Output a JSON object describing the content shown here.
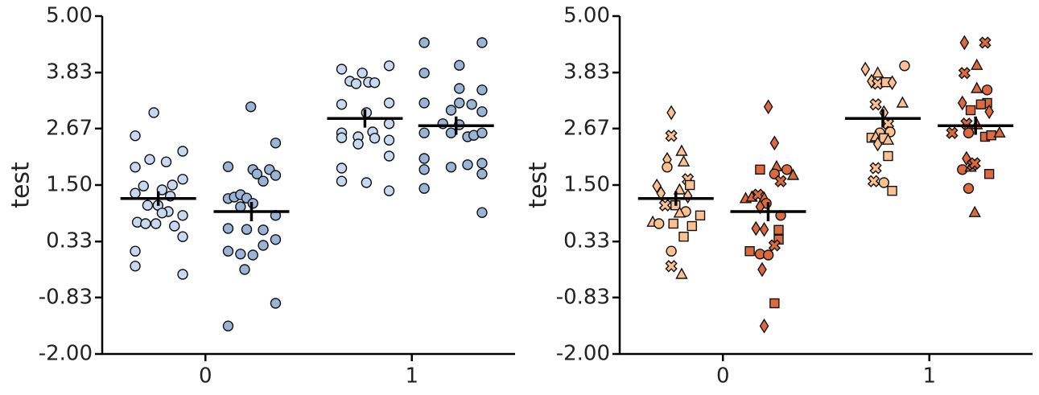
{
  "chart_data": [
    {
      "type": "strip",
      "ylabel": "test",
      "xlim": [
        -0.5,
        1.5
      ],
      "xticks": [
        0,
        1
      ],
      "ylim": [
        -2,
        5
      ],
      "yticks": [
        {
          "value": -2,
          "label": "-2.00"
        },
        {
          "value": -0.83,
          "label": "-0.83"
        },
        {
          "value": 0.33,
          "label": "0.33"
        },
        {
          "value": 1.5,
          "label": "1.50"
        },
        {
          "value": 2.67,
          "label": "2.67"
        },
        {
          "value": 3.83,
          "label": "3.83"
        },
        {
          "value": 5,
          "label": "5.00"
        }
      ],
      "series": [
        {
          "color": "#c6d9f1",
          "marker": "circle",
          "groups": [
            {
              "x": [
                -0.25,
                -0.34,
                -0.27,
                -0.19,
                -0.11,
                -0.34,
                -0.11,
                -0.3,
                -0.16,
                -0.34,
                -0.21,
                -0.17,
                -0.28,
                -0.23,
                -0.33,
                -0.29,
                -0.24,
                -0.18,
                -0.21,
                -0.11,
                -0.15,
                -0.11,
                -0.34,
                -0.34,
                -0.11
              ],
              "values": [
                3.0,
                2.52,
                2.03,
                1.98,
                2.2,
                1.87,
                1.62,
                1.48,
                1.5,
                1.33,
                1.4,
                1.27,
                1.08,
                1.08,
                0.73,
                0.7,
                0.7,
                0.95,
                0.92,
                0.87,
                0.65,
                0.43,
                0.13,
                -0.18,
                -0.35
              ],
              "mean": 1.22,
              "error": 0.15
            },
            {
              "x": [
                0.66,
                0.76,
                0.89,
                0.7,
                0.73,
                0.79,
                0.82,
                0.66,
                0.89,
                0.78,
                0.89,
                0.66,
                0.81,
                0.66,
                0.74,
                0.82,
                0.89,
                0.74,
                0.89,
                0.66,
                0.66,
                0.78,
                0.89
              ],
              "values": [
                3.9,
                3.82,
                3.97,
                3.65,
                3.6,
                3.63,
                3.62,
                3.17,
                3.2,
                3.0,
                2.77,
                2.58,
                2.6,
                2.48,
                2.5,
                2.47,
                2.43,
                2.35,
                2.1,
                1.85,
                1.58,
                1.55,
                1.38
              ],
              "mean": 2.88,
              "error": 0.19
            }
          ]
        },
        {
          "color": "#9ab4d6",
          "marker": "circle",
          "groups": [
            {
              "x": [
                0.22,
                0.11,
                0.34,
                0.23,
                0.25,
                0.31,
                0.34,
                0.28,
                0.11,
                0.14,
                0.17,
                0.2,
                0.23,
                0.17,
                0.34,
                0.11,
                0.28,
                0.34,
                0.2,
                0.11,
                0.17,
                0.23,
                0.28,
                0.19,
                0.34,
                0.11
              ],
              "values": [
                3.12,
                1.88,
                2.37,
                1.82,
                1.73,
                1.82,
                1.7,
                1.58,
                1.22,
                1.25,
                1.3,
                1.23,
                1.12,
                1.05,
                0.87,
                0.6,
                0.57,
                0.37,
                0.58,
                0.13,
                0.07,
                0.05,
                0.25,
                -0.25,
                -0.95,
                -1.42
              ],
              "mean": 0.95,
              "error": 0.2
            },
            {
              "x": [
                1.06,
                1.34,
                1.23,
                1.06,
                1.23,
                1.34,
                1.06,
                1.23,
                1.19,
                1.29,
                1.34,
                1.15,
                1.23,
                1.06,
                1.19,
                1.27,
                1.3,
                1.34,
                1.06,
                1.06,
                1.19,
                1.27,
                1.34,
                1.34,
                1.06,
                1.34
              ],
              "values": [
                4.45,
                4.45,
                3.98,
                3.82,
                3.5,
                3.47,
                3.2,
                3.2,
                3.05,
                3.17,
                3.02,
                2.77,
                2.75,
                2.58,
                2.58,
                2.5,
                2.53,
                2.58,
                2.05,
                1.82,
                1.87,
                1.92,
                1.95,
                1.73,
                1.43,
                0.93
              ],
              "mean": 2.73,
              "error": 0.19
            }
          ]
        }
      ]
    },
    {
      "type": "strip",
      "ylabel": "test",
      "xlim": [
        -0.5,
        1.5
      ],
      "xticks": [
        0,
        1
      ],
      "ylim": [
        -2,
        5
      ],
      "yticks": [
        {
          "value": -2,
          "label": "-2.00"
        },
        {
          "value": -0.83,
          "label": "-0.83"
        },
        {
          "value": 0.33,
          "label": "0.33"
        },
        {
          "value": 1.5,
          "label": "1.50"
        },
        {
          "value": 2.67,
          "label": "2.67"
        },
        {
          "value": 3.83,
          "label": "3.83"
        },
        {
          "value": 5,
          "label": "5.00"
        }
      ],
      "series": [
        {
          "color": "#fdc08f",
          "groups": [
            {
              "x": [
                -0.25,
                -0.25,
                -0.27,
                -0.19,
                -0.2,
                -0.27,
                -0.17,
                -0.32,
                -0.16,
                -0.3,
                -0.21,
                -0.17,
                -0.28,
                -0.23,
                -0.34,
                -0.31,
                -0.24,
                -0.18,
                -0.21,
                -0.11,
                -0.15,
                -0.19,
                -0.25,
                -0.25,
                -0.2
              ],
              "values": [
                3.0,
                2.52,
                2.03,
                1.98,
                2.2,
                1.87,
                1.62,
                1.48,
                1.5,
                1.33,
                1.4,
                1.27,
                1.08,
                1.08,
                0.73,
                0.7,
                0.7,
                0.95,
                0.92,
                0.87,
                0.65,
                0.43,
                0.13,
                -0.18,
                -0.35
              ],
              "markers": [
                "diamond",
                "x",
                "diamond",
                "triangle",
                "triangle",
                "circle",
                "x",
                "diamond",
                "square",
                "diamond",
                "triangle",
                "diamond",
                "x",
                "square",
                "triangle",
                "circle",
                "square",
                "circle",
                "triangle",
                "square",
                "square",
                "square",
                "circle",
                "x",
                "triangle"
              ],
              "mean": 1.22,
              "error": 0.15
            },
            {
              "x": [
                0.69,
                0.75,
                0.88,
                0.72,
                0.75,
                0.79,
                0.82,
                0.74,
                0.87,
                0.78,
                0.8,
                0.76,
                0.81,
                0.72,
                0.74,
                0.78,
                0.8,
                0.75,
                0.8,
                0.74,
                0.73,
                0.78,
                0.82
              ],
              "values": [
                3.9,
                3.82,
                3.97,
                3.65,
                3.6,
                3.63,
                3.62,
                3.17,
                3.2,
                3.0,
                2.77,
                2.58,
                2.6,
                2.48,
                2.5,
                2.47,
                2.43,
                2.35,
                2.1,
                1.85,
                1.58,
                1.55,
                1.38
              ],
              "markers": [
                "diamond",
                "triangle",
                "circle",
                "diamond",
                "x",
                "square",
                "diamond",
                "x",
                "triangle",
                "diamond",
                "x",
                "circle",
                "circle",
                "square",
                "triangle",
                "square",
                "triangle",
                "diamond",
                "square",
                "x",
                "x",
                "circle",
                "square"
              ],
              "mean": 2.88,
              "error": 0.19
            }
          ]
        },
        {
          "color": "#dc6a3c",
          "groups": [
            {
              "x": [
                0.22,
                0.26,
                0.25,
                0.18,
                0.25,
                0.31,
                0.34,
                0.28,
                0.11,
                0.14,
                0.17,
                0.2,
                0.21,
                0.18,
                0.28,
                0.16,
                0.27,
                0.27,
                0.2,
                0.13,
                0.18,
                0.22,
                0.25,
                0.19,
                0.25,
                0.2
              ],
              "values": [
                3.12,
                1.88,
                2.37,
                1.82,
                1.73,
                1.82,
                1.7,
                1.58,
                1.22,
                1.25,
                1.3,
                1.23,
                1.12,
                1.05,
                0.87,
                0.6,
                0.57,
                0.37,
                0.58,
                0.13,
                0.07,
                0.05,
                0.25,
                -0.25,
                -0.95,
                -1.42
              ],
              "markers": [
                "diamond",
                "triangle",
                "diamond",
                "square",
                "circle",
                "circle",
                "triangle",
                "x",
                "triangle",
                "triangle",
                "x",
                "triangle",
                "circle",
                "diamond",
                "circle",
                "diamond",
                "square",
                "square",
                "diamond",
                "square",
                "circle",
                "circle",
                "x",
                "diamond",
                "square",
                "diamond"
              ],
              "mean": 0.95,
              "error": 0.2
            },
            {
              "x": [
                1.17,
                1.27,
                1.23,
                1.17,
                1.23,
                1.28,
                1.16,
                1.28,
                1.2,
                1.25,
                1.29,
                1.18,
                1.23,
                1.11,
                1.19,
                1.27,
                1.3,
                1.34,
                1.18,
                1.16,
                1.2,
                1.21,
                1.22,
                1.29,
                1.19,
                1.22
              ],
              "values": [
                4.45,
                4.45,
                3.98,
                3.82,
                3.5,
                3.47,
                3.2,
                3.2,
                3.05,
                3.17,
                3.02,
                2.77,
                2.75,
                2.58,
                2.58,
                2.5,
                2.53,
                2.58,
                2.05,
                1.82,
                1.87,
                1.92,
                1.95,
                1.73,
                1.43,
                0.93
              ],
              "markers": [
                "diamond",
                "x",
                "triangle",
                "x",
                "triangle",
                "circle",
                "diamond",
                "square",
                "square",
                "square",
                "diamond",
                "x",
                "triangle",
                "x",
                "circle",
                "square",
                "square",
                "triangle",
                "diamond",
                "circle",
                "triangle",
                "x",
                "x",
                "square",
                "circle",
                "triangle"
              ],
              "mean": 2.73,
              "error": 0.19
            }
          ]
        }
      ]
    }
  ]
}
